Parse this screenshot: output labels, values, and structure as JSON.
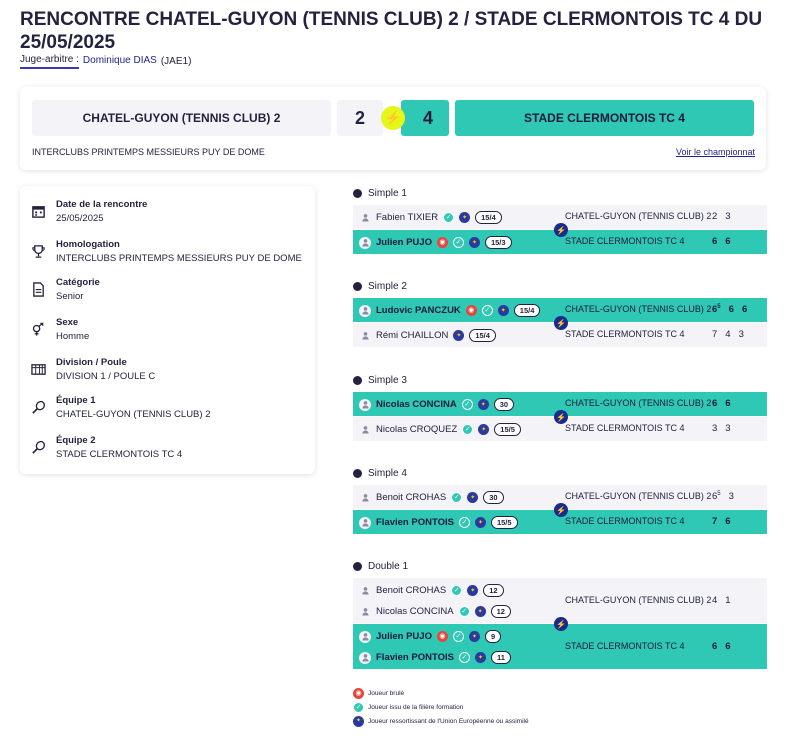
{
  "header": {
    "title": "RENCONTRE CHATEL-GUYON (TENNIS CLUB) 2 / STADE CLERMONTOIS TC 4 DU 25/05/2025",
    "referee_label": "Juge-arbitre :",
    "referee_name": "Dominique DIAS",
    "referee_code": "(JAE1)"
  },
  "scoreboard": {
    "home_team": "CHATEL-GUYON (TENNIS CLUB) 2",
    "home_score": "2",
    "away_score": "4",
    "away_team": "STADE CLERMONTOIS TC 4",
    "competition": "INTERCLUBS PRINTEMPS MESSIEURS PUY DE DOME",
    "championship_link": "Voir le championnat"
  },
  "info": [
    {
      "icon": "calendar-icon",
      "label": "Date de la rencontre",
      "value": "25/05/2025"
    },
    {
      "icon": "trophy-icon",
      "label": "Homologation",
      "value": "INTERCLUBS PRINTEMPS MESSIEURS PUY DE DOME"
    },
    {
      "icon": "document-icon",
      "label": "Catégorie",
      "value": "Senior"
    },
    {
      "icon": "gender-icon",
      "label": "Sexe",
      "value": "Homme"
    },
    {
      "icon": "grid-icon",
      "label": "Division / Poule",
      "value": "DIVISION 1 / POULE C"
    },
    {
      "icon": "racket-icon",
      "label": "Équipe 1",
      "value": "CHATEL-GUYON (TENNIS CLUB) 2"
    },
    {
      "icon": "racket-icon",
      "label": "Équipe 2",
      "value": "STADE CLERMONTOIS TC 4"
    }
  ],
  "matches": [
    {
      "title": "Simple 1",
      "rows": [
        {
          "players": [
            {
              "name": "Fabien TIXIER",
              "badges": [
                "form",
                "eu"
              ],
              "rank": "15/4"
            }
          ],
          "team": "CHATEL-GUYON (TENNIS CLUB) 2",
          "sets": [
            "2",
            "3"
          ],
          "won": false
        },
        {
          "players": [
            {
              "name": "Julien PUJO",
              "badges": [
                "burned",
                "form",
                "eu"
              ],
              "rank": "15/3"
            }
          ],
          "team": "STADE CLERMONTOIS TC 4",
          "sets": [
            "6",
            "6"
          ],
          "won": true
        }
      ]
    },
    {
      "title": "Simple 2",
      "rows": [
        {
          "players": [
            {
              "name": "Ludovic PANCZUK",
              "badges": [
                "burned",
                "form",
                "eu"
              ],
              "rank": "15/4"
            }
          ],
          "team": "CHATEL-GUYON (TENNIS CLUB) 2",
          "sets": [
            "6",
            "6",
            "6"
          ],
          "sup": "5",
          "won": true
        },
        {
          "players": [
            {
              "name": "Rémi CHAILLON",
              "badges": [
                "eu"
              ],
              "rank": "15/4"
            }
          ],
          "team": "STADE CLERMONTOIS TC 4",
          "sets": [
            "7",
            "4",
            "3"
          ],
          "won": false
        }
      ]
    },
    {
      "title": "Simple 3",
      "rows": [
        {
          "players": [
            {
              "name": "Nicolas CONCINA",
              "badges": [
                "form",
                "eu"
              ],
              "rank": "30"
            }
          ],
          "team": "CHATEL-GUYON (TENNIS CLUB) 2",
          "sets": [
            "6",
            "6"
          ],
          "won": true
        },
        {
          "players": [
            {
              "name": "Nicolas CROQUEZ",
              "badges": [
                "form",
                "eu"
              ],
              "rank": "15/5"
            }
          ],
          "team": "STADE CLERMONTOIS TC 4",
          "sets": [
            "3",
            "3"
          ],
          "won": false
        }
      ]
    },
    {
      "title": "Simple 4",
      "rows": [
        {
          "players": [
            {
              "name": "Benoit CROHAS",
              "badges": [
                "form",
                "eu"
              ],
              "rank": "30"
            }
          ],
          "team": "CHATEL-GUYON (TENNIS CLUB) 2",
          "sets": [
            "6",
            "3"
          ],
          "sup": "5",
          "won": false
        },
        {
          "players": [
            {
              "name": "Flavien PONTOIS",
              "badges": [
                "form",
                "eu"
              ],
              "rank": "15/5"
            }
          ],
          "team": "STADE CLERMONTOIS TC 4",
          "sets": [
            "7",
            "6"
          ],
          "won": true
        }
      ]
    },
    {
      "title": "Double 1",
      "rows": [
        {
          "players": [
            {
              "name": "Benoit CROHAS",
              "badges": [
                "form",
                "eu"
              ],
              "rank": "12"
            },
            {
              "name": "Nicolas CONCINA",
              "badges": [
                "form",
                "eu"
              ],
              "rank": "12"
            }
          ],
          "team": "CHATEL-GUYON (TENNIS CLUB) 2",
          "sets": [
            "4",
            "1"
          ],
          "won": false
        },
        {
          "players": [
            {
              "name": "Julien PUJO",
              "badges": [
                "burned",
                "form",
                "eu"
              ],
              "rank": "9"
            },
            {
              "name": "Flavien PONTOIS",
              "badges": [
                "form",
                "eu"
              ],
              "rank": "11"
            }
          ],
          "team": "STADE CLERMONTOIS TC 4",
          "sets": [
            "6",
            "6"
          ],
          "won": true
        }
      ]
    }
  ],
  "legend": [
    {
      "type": "burned",
      "label": "Joueur brulé"
    },
    {
      "type": "form",
      "label": "Joueur issu de la filière formation"
    },
    {
      "type": "eu",
      "label": "Joueur ressortissant de l'Union Européenne ou assimilé"
    }
  ],
  "colors": {
    "accent": "#2fc8b5",
    "lost_row": "#f3f3f8",
    "navy": "#23233f",
    "bolt": "#e6f51a"
  }
}
